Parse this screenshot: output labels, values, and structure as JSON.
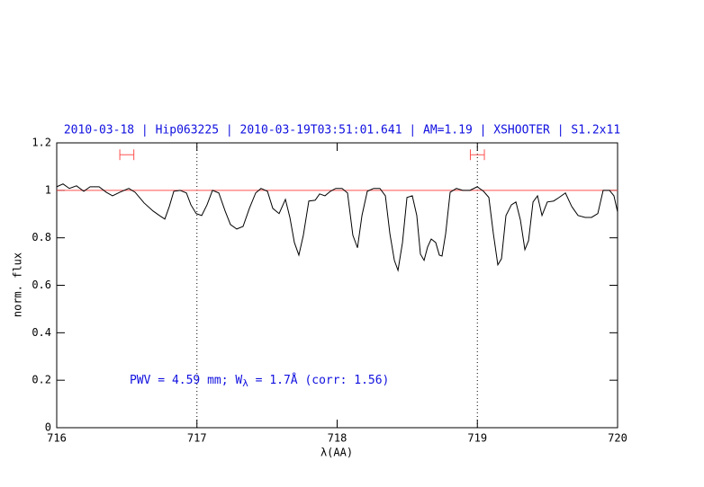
{
  "chart_data": {
    "type": "line",
    "title": "2010-03-18 | Hip063225 | 2010-03-19T03:51:01.641 | AM=1.19 | XSHOOTER | S1.2x11",
    "xlabel": "λ(AA)",
    "ylabel": "norm. flux",
    "annotation": {
      "prefix": "PWV = 4.59 mm; W",
      "subscript": "λ",
      "suffix": " = 1.7Å (corr: 1.56)",
      "x": 716.52,
      "y": 0.2
    },
    "xlim": [
      716,
      720
    ],
    "xticks": [
      716,
      717,
      718,
      719,
      720
    ],
    "ylim": [
      0,
      1.2
    ],
    "yticks": [
      0,
      0.2,
      0.4,
      0.6,
      0.8,
      1,
      1.2
    ],
    "hline": 1,
    "hline_color": "#ff5050",
    "vlines": [
      717,
      719
    ],
    "intervals": [
      {
        "x": [
          716.45,
          716.55
        ],
        "y": 1.15
      },
      {
        "x": [
          718.95,
          719.05
        ],
        "y": 1.15
      }
    ],
    "interval_color": "#ff5050",
    "series": [
      {
        "color": "#000000",
        "x": [
          716.0,
          716.045,
          716.09,
          716.141,
          716.193,
          716.238,
          716.302,
          716.353,
          716.398,
          716.45,
          716.514,
          716.559,
          716.623,
          716.687,
          716.732,
          716.771,
          716.803,
          716.835,
          716.88,
          716.925,
          716.957,
          716.995,
          717.034,
          717.072,
          717.111,
          717.156,
          717.201,
          717.239,
          717.284,
          717.329,
          717.374,
          717.419,
          717.457,
          717.503,
          717.541,
          717.586,
          717.631,
          717.663,
          717.695,
          717.727,
          717.759,
          717.798,
          717.843,
          717.875,
          717.913,
          717.952,
          717.99,
          718.035,
          718.074,
          718.112,
          718.145,
          718.177,
          718.215,
          718.26,
          718.305,
          718.344,
          718.376,
          718.408,
          718.434,
          718.466,
          718.498,
          718.536,
          718.568,
          718.594,
          718.62,
          718.645,
          718.671,
          718.703,
          718.729,
          718.748,
          718.774,
          718.806,
          718.851,
          718.896,
          718.947,
          718.999,
          719.044,
          719.082,
          719.114,
          719.146,
          719.172,
          719.204,
          719.243,
          719.275,
          719.307,
          719.339,
          719.365,
          719.397,
          719.429,
          719.461,
          719.499,
          719.544,
          719.583,
          719.628,
          719.673,
          719.718,
          719.769,
          719.814,
          719.859,
          719.897,
          719.942,
          719.974,
          720.0
        ],
        "values": [
          1.015,
          1.027,
          1.008,
          1.019,
          0.996,
          1.015,
          1.015,
          0.992,
          0.977,
          0.992,
          1.008,
          0.992,
          0.947,
          0.913,
          0.894,
          0.879,
          0.932,
          0.996,
          1.0,
          0.989,
          0.939,
          0.902,
          0.894,
          0.939,
          1.0,
          0.989,
          0.913,
          0.856,
          0.837,
          0.848,
          0.924,
          0.989,
          1.008,
          0.996,
          0.924,
          0.902,
          0.962,
          0.886,
          0.78,
          0.727,
          0.811,
          0.955,
          0.958,
          0.985,
          0.977,
          0.996,
          1.008,
          1.008,
          0.989,
          0.811,
          0.758,
          0.894,
          0.996,
          1.008,
          1.008,
          0.977,
          0.818,
          0.705,
          0.663,
          0.78,
          0.97,
          0.977,
          0.894,
          0.731,
          0.705,
          0.761,
          0.795,
          0.78,
          0.727,
          0.723,
          0.818,
          0.992,
          1.008,
          1.0,
          1.0,
          1.015,
          0.996,
          0.97,
          0.818,
          0.686,
          0.712,
          0.894,
          0.939,
          0.951,
          0.875,
          0.75,
          0.788,
          0.951,
          0.977,
          0.894,
          0.951,
          0.955,
          0.97,
          0.989,
          0.932,
          0.894,
          0.886,
          0.886,
          0.902,
          1.0,
          1.0,
          0.977,
          0.909
        ]
      }
    ]
  }
}
